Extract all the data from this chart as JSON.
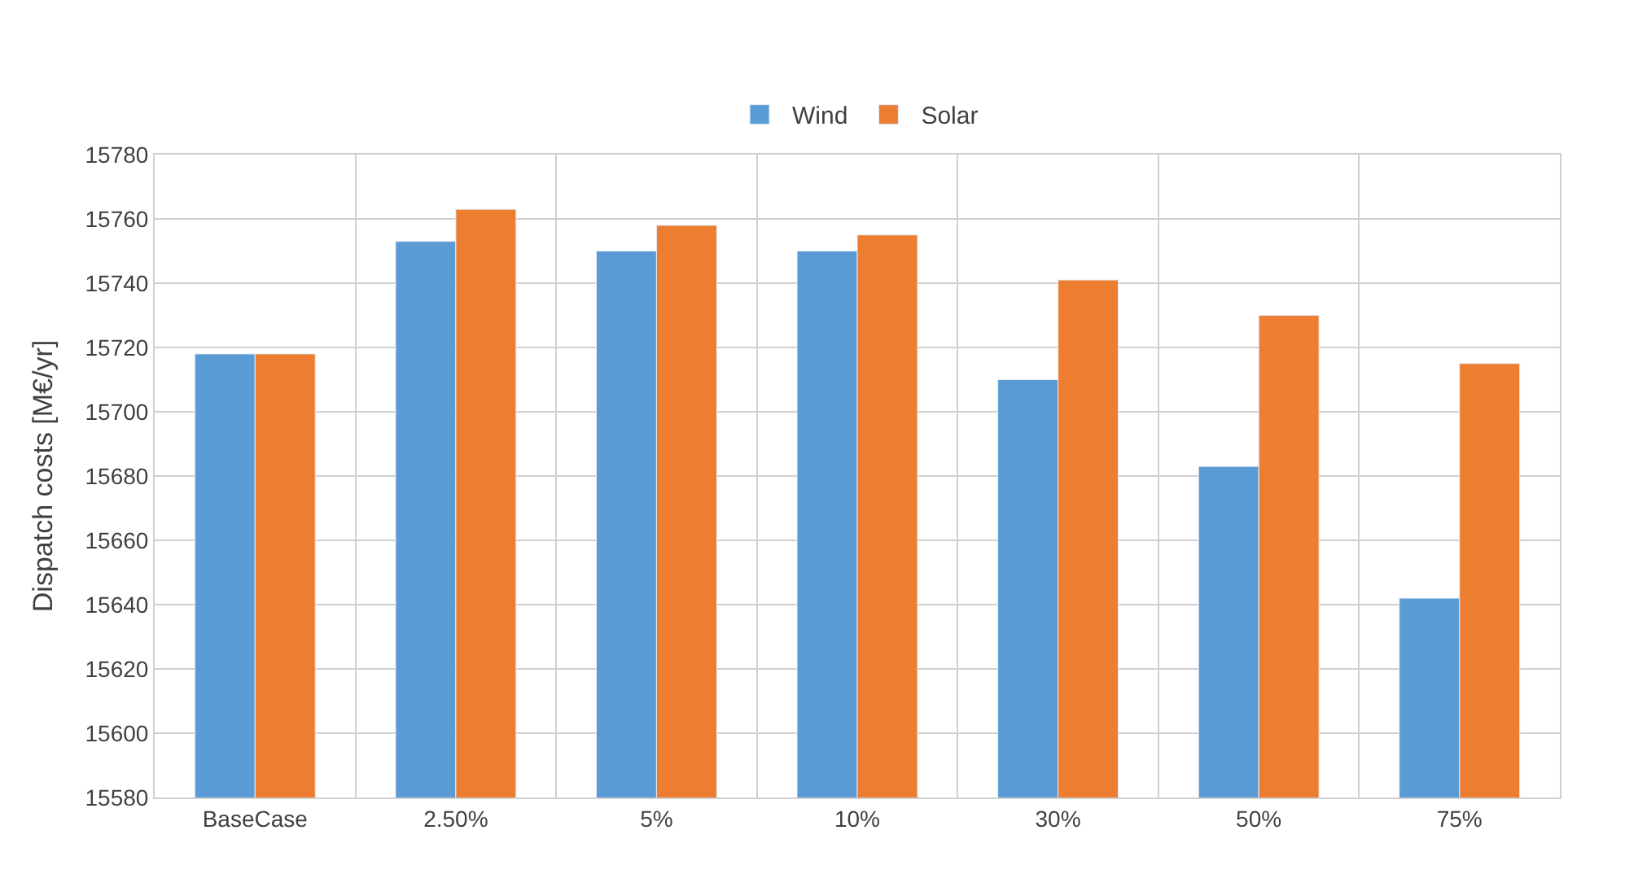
{
  "chart_data": {
    "type": "bar",
    "ylabel": "Dispatch costs [M€/yr]",
    "categories": [
      "BaseCase",
      "2.50%",
      "5%",
      "10%",
      "30%",
      "50%",
      "75%"
    ],
    "series": [
      {
        "name": "Wind",
        "color": "#5b9bd5",
        "values": [
          15718,
          15753,
          15750,
          15750,
          15710,
          15683,
          15642
        ]
      },
      {
        "name": "Solar",
        "color": "#ed7d31",
        "values": [
          15718,
          15763,
          15758,
          15755,
          15741,
          15730,
          15715
        ]
      }
    ],
    "ylim": [
      15580,
      15780
    ],
    "yticks": [
      15580,
      15600,
      15620,
      15640,
      15660,
      15680,
      15700,
      15720,
      15740,
      15760,
      15780
    ],
    "grid": true,
    "legend": "top"
  }
}
